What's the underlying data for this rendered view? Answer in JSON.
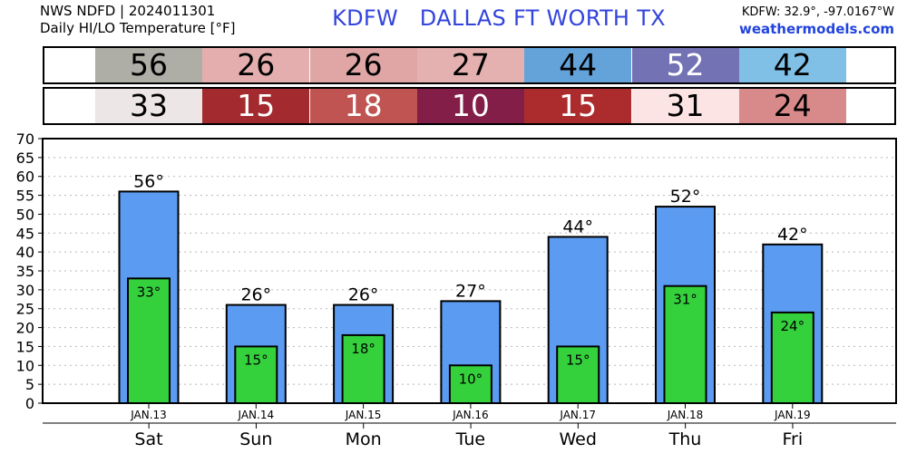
{
  "header": {
    "source_line": "NWS NDFD | 2024011301",
    "product_line": "Daily HI/LO Temperature [°F]",
    "title": "KDFW   DALLAS FT WORTH TX",
    "coords": "KDFW: 32.9°, -97.0167°W",
    "site": "weathermodels.com"
  },
  "colors": {
    "hi_bar": "#5b9cf2",
    "lo_bar": "#35d13d"
  },
  "strips": {
    "high": [
      {
        "value": "56",
        "bg": "#aeaea6",
        "fg": "#000000"
      },
      {
        "value": "26",
        "bg": "#e5aeae",
        "fg": "#000000"
      },
      {
        "value": "26",
        "bg": "#e0a6a6",
        "fg": "#000000"
      },
      {
        "value": "27",
        "bg": "#e5b0b0",
        "fg": "#000000"
      },
      {
        "value": "44",
        "bg": "#64a2da",
        "fg": "#000000"
      },
      {
        "value": "52",
        "bg": "#7272b4",
        "fg": "#ffffff"
      },
      {
        "value": "42",
        "bg": "#80c0e6",
        "fg": "#000000"
      }
    ],
    "low": [
      {
        "value": "33",
        "bg": "#ece6e6",
        "fg": "#000000"
      },
      {
        "value": "15",
        "bg": "#a32a2e",
        "fg": "#ffffff"
      },
      {
        "value": "18",
        "bg": "#bf5452",
        "fg": "#ffffff"
      },
      {
        "value": "10",
        "bg": "#821e48",
        "fg": "#ffffff"
      },
      {
        "value": "15",
        "bg": "#ac2c2e",
        "fg": "#ffffff"
      },
      {
        "value": "31",
        "bg": "#fce4e4",
        "fg": "#000000"
      },
      {
        "value": "24",
        "bg": "#d88a8a",
        "fg": "#000000"
      }
    ]
  },
  "chart_data": {
    "type": "bar",
    "ylim": [
      0,
      70
    ],
    "yticks": [
      0,
      5,
      10,
      15,
      20,
      25,
      30,
      35,
      40,
      45,
      50,
      55,
      60,
      65,
      70
    ],
    "grid": true,
    "dates": [
      "JAN.13",
      "JAN.14",
      "JAN.15",
      "JAN.16",
      "JAN.17",
      "JAN.18",
      "JAN.19"
    ],
    "days": [
      "Sat",
      "Sun",
      "Mon",
      "Tue",
      "Wed",
      "Thu",
      "Fri"
    ],
    "series": [
      {
        "values": [
          56,
          26,
          26,
          27,
          44,
          52,
          42
        ],
        "labels": [
          "56°",
          "26°",
          "26°",
          "27°",
          "44°",
          "52°",
          "42°"
        ]
      },
      {
        "values": [
          33,
          15,
          18,
          10,
          15,
          31,
          24
        ],
        "labels": [
          "33°",
          "15°",
          "18°",
          "10°",
          "15°",
          "31°",
          "24°"
        ]
      }
    ]
  }
}
